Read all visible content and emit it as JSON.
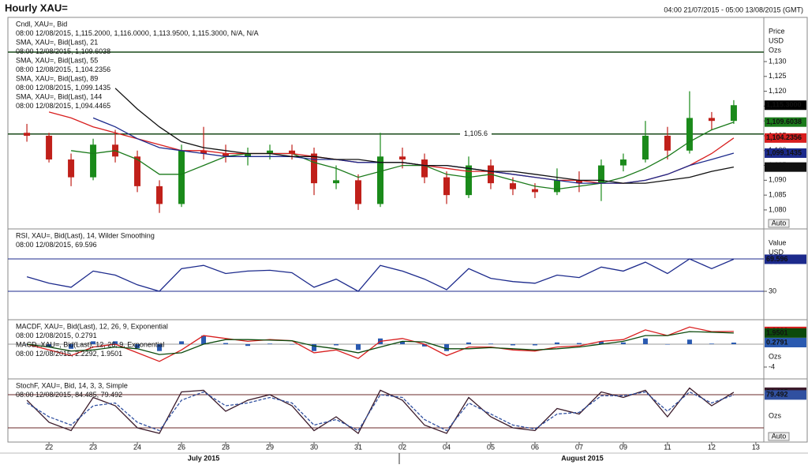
{
  "chart_data": [
    {
      "type": "candlestick",
      "title": "Hourly XAU=",
      "subtitle": "04:00 21/07/2015 - 05:00 13/08/2015 (GMT)",
      "x": [
        -0.5,
        0,
        0.5,
        1,
        1.5,
        2,
        2.5,
        3,
        3.5,
        4,
        4.5,
        5,
        5.5,
        6,
        6.5,
        7,
        7.5,
        8,
        8.5,
        9,
        9.5,
        10,
        10.5,
        11,
        11.5,
        12,
        12.5,
        13,
        13.5,
        14,
        14.5,
        15,
        15.5
      ],
      "xlim": [
        -0.93,
        16.18
      ],
      "xticks": [
        {
          "value": 0,
          "label": "22"
        },
        {
          "value": 1,
          "label": "23"
        },
        {
          "value": 2,
          "label": "24"
        },
        {
          "value": 3,
          "label": "26"
        },
        {
          "value": 4,
          "label": "28"
        },
        {
          "value": 5,
          "label": "29"
        },
        {
          "value": 6,
          "label": "30"
        },
        {
          "value": 7,
          "label": "31"
        },
        {
          "value": 8,
          "label": "02"
        },
        {
          "value": 9,
          "label": "04"
        },
        {
          "value": 10,
          "label": "05"
        },
        {
          "value": 11,
          "label": "06"
        },
        {
          "value": 12,
          "label": "07"
        },
        {
          "value": 13,
          "label": "09"
        },
        {
          "value": 14,
          "label": "11"
        },
        {
          "value": 15,
          "label": "12"
        },
        {
          "value": 16,
          "label": "13"
        }
      ],
      "months": [
        "July 2015",
        "August 2015"
      ],
      "ylim": [
        1073.6,
        1144.9
      ],
      "yticks": [
        {
          "value": 1080,
          "label": "1,080"
        },
        {
          "value": 1085,
          "label": "1,085"
        },
        {
          "value": 1090,
          "label": "1,090"
        },
        {
          "value": 1095,
          "label": "1,095"
        },
        {
          "value": 1100,
          "label": "1,100"
        },
        {
          "value": 1105,
          "label": "1,105"
        },
        {
          "value": 1110,
          "label": "1,110"
        },
        {
          "value": 1115,
          "label": "1,115"
        },
        {
          "value": 1120,
          "label": "1,120"
        },
        {
          "value": 1125,
          "label": "1,125"
        },
        {
          "value": 1130,
          "label": "1,130"
        }
      ],
      "axis_labels": [
        "Price",
        "USD",
        "Ozs"
      ],
      "button": "Auto",
      "hlines": [
        {
          "value": 1105.6,
          "label": "1,105.6",
          "color": "#1a4a1a"
        },
        {
          "value": 1133.2,
          "color": "#1a4a1a"
        }
      ],
      "candles": {
        "name": "Cndl, XAU=, Bid",
        "readout": "08:00 12/08/2015, 1,115.2000, 1,116.0000, 1,113.9500, 1,115.3000, N/A, N/A",
        "color": "#000000",
        "up_color": "#1a8a1a",
        "down_color": "#c0201a",
        "last_label": "1,115.3000",
        "open": [
          1106,
          1105,
          1097,
          1091,
          1102,
          1098,
          1088,
          1082,
          1100,
          1099,
          1098,
          1099,
          1100,
          1099,
          1089,
          1090,
          1082,
          1098,
          1097,
          1091,
          1085,
          1095,
          1089,
          1087,
          1086,
          1090,
          1089,
          1095,
          1097,
          1105,
          1100,
          1111,
          1110
        ],
        "high": [
          1109,
          1106,
          1099,
          1104,
          1107,
          1100,
          1090,
          1102,
          1108,
          1102,
          1101,
          1102,
          1102,
          1101,
          1095,
          1092,
          1106,
          1101,
          1099,
          1093,
          1098,
          1097,
          1091,
          1089,
          1094,
          1093,
          1097,
          1099,
          1110,
          1108,
          1120,
          1113,
          1117
        ],
        "low": [
          1103,
          1096,
          1088,
          1090,
          1096,
          1086,
          1079,
          1081,
          1097,
          1096,
          1095,
          1097,
          1097,
          1085,
          1087,
          1080,
          1081,
          1094,
          1089,
          1082,
          1084,
          1087,
          1085,
          1084,
          1085,
          1086,
          1083,
          1093,
          1096,
          1097,
          1099,
          1107,
          1109
        ],
        "close": [
          1105,
          1097,
          1091,
          1102,
          1098,
          1088,
          1082,
          1100,
          1099,
          1098,
          1099,
          1100,
          1099,
          1089,
          1090,
          1082,
          1098,
          1097,
          1091,
          1085,
          1095,
          1089,
          1087,
          1086,
          1090,
          1089,
          1095,
          1097,
          1105,
          1100,
          1111,
          1110,
          1115.3
        ]
      },
      "series": [
        {
          "name": "SMA, XAU=, Bid(Last), 21",
          "readout": "08:00 12/08/2015, 1,109.6038",
          "color": "#1a7a1a",
          "last_label": "1,109.6038",
          "values": [
            null,
            null,
            1100,
            1099,
            1100,
            1097,
            1092,
            1092,
            1095,
            1098,
            1099,
            1099,
            1099,
            1096,
            1094,
            1091,
            1093,
            1095,
            1095,
            1092,
            1091,
            1092,
            1090,
            1088,
            1087,
            1088,
            1089,
            1091,
            1094,
            1098,
            1103,
            1107,
            1109.6038
          ]
        },
        {
          "name": "SMA, XAU=, Bid(Last), 55",
          "readout": "08:00 12/08/2015, 1,104.2356",
          "color": "#d81e1e",
          "last_label": "1,104.2356",
          "values": [
            null,
            1113,
            1111,
            1108,
            1106,
            1104,
            1102,
            1100,
            1100,
            1099,
            1099,
            1099,
            1099,
            1098,
            1097,
            1096,
            1096,
            1096,
            1095,
            1094,
            1093,
            1093,
            1092,
            1091,
            1090,
            1090,
            1089,
            1089,
            1090,
            1092,
            1095,
            1099,
            1104.2356
          ]
        },
        {
          "name": "SMA, XAU=, Bid(Last), 89",
          "readout": "08:00 12/08/2015, 1,099.1435",
          "color": "#1c2a8c",
          "last_label": "1,099.1435",
          "values": [
            null,
            null,
            null,
            1111,
            1108,
            1104,
            1101,
            1100,
            1099,
            1098,
            1098,
            1098,
            1098,
            1097,
            1097,
            1096,
            1096,
            1096,
            1095,
            1095,
            1094,
            1093,
            1092,
            1091,
            1090,
            1089,
            1089,
            1089,
            1090,
            1092,
            1095,
            1097,
            1099.1435
          ]
        },
        {
          "name": "SMA, XAU=, Bid(Last), 144",
          "readout": "08:00 12/08/2015, 1,094.4465",
          "color": "#111111",
          "last_label": "1,094.4465",
          "values": [
            null,
            null,
            null,
            null,
            1121,
            1114,
            1108,
            1103,
            1101,
            1100,
            1099,
            1099,
            1098,
            1098,
            1097,
            1097,
            1096,
            1096,
            1095,
            1095,
            1094,
            1093,
            1093,
            1092,
            1091,
            1090,
            1090,
            1089,
            1089,
            1090,
            1091,
            1093,
            1094.4465
          ]
        }
      ]
    },
    {
      "type": "line",
      "ylim": [
        -5.1,
        107.1
      ],
      "yticks": [
        30
      ],
      "axis_labels": [
        "Value",
        "USD",
        "Ozs"
      ],
      "levels": [
        70,
        30
      ],
      "level_color": "#1c2a8c",
      "series": [
        {
          "name": "RSI, XAU=, Bid(Last), 14, Wilder Smoothing",
          "readout": "08:00 12/08/2015, 69.596",
          "color": "#1c2a8c",
          "last_label": "69.596",
          "values": [
            48,
            40,
            35,
            55,
            50,
            38,
            30,
            58,
            62,
            52,
            55,
            56,
            53,
            35,
            45,
            30,
            62,
            55,
            45,
            32,
            58,
            46,
            42,
            40,
            50,
            47,
            60,
            55,
            66,
            52,
            70,
            58,
            69.596
          ]
        }
      ]
    },
    {
      "type": "line",
      "ylim": [
        -6.07,
        4.28
      ],
      "yticks": [
        -4
      ],
      "axis_labels": [
        "Ozs"
      ],
      "levels": [
        0
      ],
      "level_color": "#9a9a9a",
      "series": [
        {
          "name": "MACDF, XAU=, Bid(Last), 12, 26, 9, Exponential",
          "readout": "08:00 12/08/2015, 0.2791",
          "color": "#2a5ab0",
          "style": "bar",
          "last_label": "0.2791",
          "values": [
            0,
            -0.5,
            -0.8,
            0.5,
            0.5,
            -0.7,
            -1.2,
            0.5,
            1.5,
            0.2,
            -0.3,
            0.1,
            0,
            -1.2,
            -0.2,
            -1,
            1,
            0.5,
            -0.4,
            -1.2,
            0.3,
            0.1,
            -0.2,
            -0.2,
            0.3,
            0.2,
            0.5,
            0.3,
            1,
            0,
            0.8,
            0.1,
            0.2791
          ]
        },
        {
          "name": "MACD, XAU=, Bid(Last), 12, 26, 9, Exponential",
          "readout": "08:00 12/08/2015, 2.2292, 1.9501",
          "color": "#d81e1e",
          "last_label": "2.2292",
          "values": [
            0,
            -1,
            -2,
            -0.5,
            0,
            -1.5,
            -3,
            -1,
            1.5,
            1,
            0.5,
            0.8,
            0.6,
            -1.5,
            -1,
            -2.5,
            0.5,
            1,
            0,
            -2,
            -0.5,
            -0.5,
            -1,
            -1.2,
            -0.5,
            -0.3,
            0.5,
            0.8,
            2.5,
            1.5,
            3,
            2.2,
            2.2292
          ]
        },
        {
          "color": "#0c4a0c",
          "last_label": "1.9501",
          "values": [
            0,
            -0.5,
            -1.2,
            -1,
            -0.5,
            -0.8,
            -1.8,
            -1.5,
            0,
            0.8,
            0.8,
            0.7,
            0.6,
            -0.3,
            -0.8,
            -1.5,
            -0.5,
            0.5,
            0.4,
            -0.8,
            -0.8,
            -0.6,
            -0.8,
            -1,
            -0.8,
            -0.5,
            0,
            0.5,
            1.5,
            1.5,
            2.2,
            2.1,
            1.9501
          ]
        }
      ]
    },
    {
      "type": "line",
      "ylim": [
        -5.7,
        108.6
      ],
      "axis_labels": [
        "Ozs"
      ],
      "button": "Auto",
      "levels": [
        80,
        20
      ],
      "level_color": "#6a2a2a",
      "series": [
        {
          "name": "StochF, XAU=, Bid, 14, 3, 3, Simple",
          "readout": "08:00 12/08/2015, 84.485, 79.492",
          "color": "#3a1a2a",
          "last_label": "84.485",
          "values": [
            70,
            30,
            15,
            75,
            60,
            20,
            10,
            85,
            88,
            50,
            70,
            80,
            60,
            15,
            40,
            10,
            88,
            70,
            25,
            10,
            75,
            40,
            20,
            15,
            55,
            45,
            85,
            75,
            88,
            40,
            92,
            60,
            84.485
          ]
        },
        {
          "color": "#3050a0",
          "dashed": true,
          "last_label": "79.492",
          "values": [
            65,
            40,
            25,
            60,
            65,
            30,
            15,
            70,
            85,
            60,
            65,
            75,
            65,
            25,
            35,
            15,
            80,
            75,
            35,
            15,
            65,
            45,
            25,
            18,
            45,
            48,
            78,
            78,
            85,
            50,
            85,
            65,
            79.492
          ]
        }
      ]
    }
  ]
}
